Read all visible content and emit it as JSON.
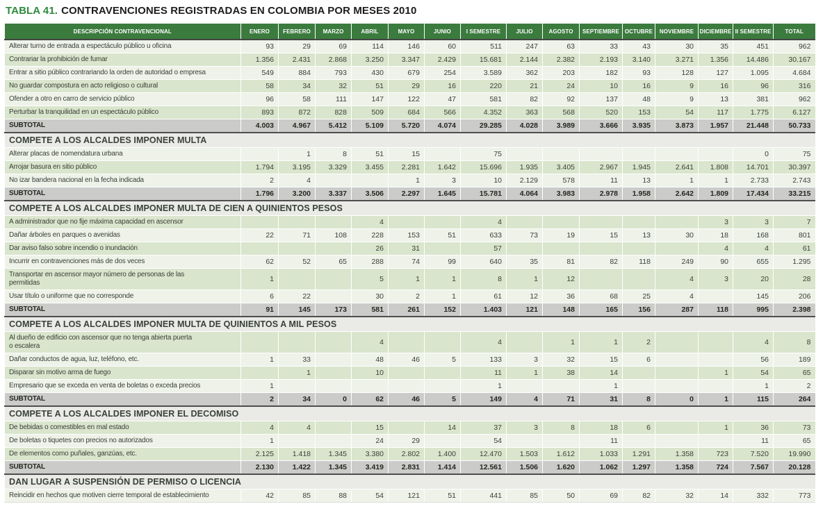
{
  "title": {
    "prefix": "TABLA 41.",
    "text": "CONTRAVENCIONES REGISTRADAS EN COLOMBIA POR MESES 2010"
  },
  "colors": {
    "header_green": "#3b7b3e",
    "title_green": "#2e8a3e",
    "row_light": "#eef2e8",
    "row_green": "#d9e5cc",
    "subtotal_gray": "#cbcbca",
    "section_bg": "#eaeae6"
  },
  "table": {
    "columns": [
      "DESCRIPCIÓN CONTRAVENCIONAL",
      "ENERO",
      "FEBRERO",
      "MARZO",
      "ABRIL",
      "MAYO",
      "JUNIO",
      "I SEMESTRE",
      "JULIO",
      "AGOSTO",
      "SEPTIEMBRE",
      "OCTUBRE",
      "NOVIEMBRE",
      "DICIEMBRE",
      "II SEMESTRE",
      "TOTAL"
    ],
    "subtotal_label": "SUBTOTAL",
    "sections": [
      {
        "header": null,
        "rows": [
          {
            "label": "Alterar turno de entrada a espectáculo público u oficina",
            "values": [
              "93",
              "29",
              "69",
              "114",
              "146",
              "60",
              "511",
              "247",
              "63",
              "33",
              "43",
              "30",
              "35",
              "451",
              "962"
            ]
          },
          {
            "label": "Contrariar la prohibición de fumar",
            "values": [
              "1.356",
              "2.431",
              "2.868",
              "3.250",
              "3.347",
              "2.429",
              "15.681",
              "2.144",
              "2.382",
              "2.193",
              "3.140",
              "3.271",
              "1.356",
              "14.486",
              "30.167"
            ]
          },
          {
            "label": "Entrar a sitio público contrariando la orden de autoridad o empresa",
            "values": [
              "549",
              "884",
              "793",
              "430",
              "679",
              "254",
              "3.589",
              "362",
              "203",
              "182",
              "93",
              "128",
              "127",
              "1.095",
              "4.684"
            ]
          },
          {
            "label": "No guardar compostura en acto religioso o cultural",
            "values": [
              "58",
              "34",
              "32",
              "51",
              "29",
              "16",
              "220",
              "21",
              "24",
              "10",
              "16",
              "9",
              "16",
              "96",
              "316"
            ]
          },
          {
            "label": "Ofender a otro en carro de servicio público",
            "values": [
              "96",
              "58",
              "111",
              "147",
              "122",
              "47",
              "581",
              "82",
              "92",
              "137",
              "48",
              "9",
              "13",
              "381",
              "962"
            ]
          },
          {
            "label": "Perturbar la tranquilidad en un espectáculo público",
            "values": [
              "893",
              "872",
              "828",
              "509",
              "684",
              "566",
              "4.352",
              "363",
              "568",
              "520",
              "153",
              "54",
              "117",
              "1.775",
              "6.127"
            ]
          }
        ],
        "subtotal": {
          "values": [
            "4.003",
            "4.967",
            "5.412",
            "5.109",
            "5.720",
            "4.074",
            "29.285",
            "4.028",
            "3.989",
            "3.666",
            "3.935",
            "3.873",
            "1.957",
            "21.448",
            "50.733"
          ]
        }
      },
      {
        "header": "COMPETE A LOS ALCALDES IMPONER MULTA",
        "rows": [
          {
            "label": "Alterar placas de nomendatura urbana",
            "values": [
              "",
              "1",
              "8",
              "51",
              "15",
              "",
              "75",
              "",
              "",
              "",
              "",
              "",
              "",
              "0",
              "75"
            ]
          },
          {
            "label": "Arrojar basura en sitio público",
            "values": [
              "1.794",
              "3.195",
              "3.329",
              "3.455",
              "2.281",
              "1.642",
              "15.696",
              "1.935",
              "3.405",
              "2.967",
              "1.945",
              "2.641",
              "1.808",
              "14.701",
              "30.397"
            ]
          },
          {
            "label": "No izar bandera nacional en la fecha indicada",
            "values": [
              "2",
              "4",
              "",
              "",
              "1",
              "3",
              "10",
              "2.129",
              "578",
              "11",
              "13",
              "1",
              "1",
              "2.733",
              "2.743"
            ]
          }
        ],
        "subtotal": {
          "values": [
            "1.796",
            "3.200",
            "3.337",
            "3.506",
            "2.297",
            "1.645",
            "15.781",
            "4.064",
            "3.983",
            "2.978",
            "1.958",
            "2.642",
            "1.809",
            "17.434",
            "33.215"
          ]
        }
      },
      {
        "header": "COMPETE A LOS ALCALDES IMPONER MULTA DE CIEN A QUINIENTOS PESOS",
        "rows": [
          {
            "label": "A administrador que no fije máxima capacidad en ascensor",
            "values": [
              "",
              "",
              "",
              "4",
              "",
              "",
              "4",
              "",
              "",
              "",
              "",
              "",
              "3",
              "3",
              "7"
            ]
          },
          {
            "label": "Dañar árboles en parques o avenidas",
            "values": [
              "22",
              "71",
              "108",
              "228",
              "153",
              "51",
              "633",
              "73",
              "19",
              "15",
              "13",
              "30",
              "18",
              "168",
              "801"
            ]
          },
          {
            "label": "Dar aviso falso sobre incendio o inundación",
            "values": [
              "",
              "",
              "",
              "26",
              "31",
              "",
              "57",
              "",
              "",
              "",
              "",
              "",
              "4",
              "4",
              "61"
            ]
          },
          {
            "label": "Incurrir en contravenciones más de dos veces",
            "values": [
              "62",
              "52",
              "65",
              "288",
              "74",
              "99",
              "640",
              "35",
              "81",
              "82",
              "118",
              "249",
              "90",
              "655",
              "1.295"
            ]
          },
          {
            "label": "Transportar en ascensor mayor número de personas de las\npermitidas",
            "values": [
              "1",
              "",
              "",
              "5",
              "1",
              "1",
              "8",
              "1",
              "12",
              "",
              "",
              "4",
              "3",
              "20",
              "28"
            ]
          },
          {
            "label": "Usar título o uniforme que no corresponde",
            "values": [
              "6",
              "22",
              "",
              "30",
              "2",
              "1",
              "61",
              "12",
              "36",
              "68",
              "25",
              "4",
              "",
              "145",
              "206"
            ]
          }
        ],
        "subtotal": {
          "values": [
            "91",
            "145",
            "173",
            "581",
            "261",
            "152",
            "1.403",
            "121",
            "148",
            "165",
            "156",
            "287",
            "118",
            "995",
            "2.398"
          ]
        }
      },
      {
        "header": "COMPETE A LOS ALCALDES IMPONER MULTA DE QUINIENTOS A MIL PESOS",
        "rows": [
          {
            "label": "Al dueño de edificio con ascensor que no tenga abierta puerta\no escalera",
            "values": [
              "",
              "",
              "",
              "4",
              "",
              "",
              "4",
              "",
              "1",
              "1",
              "2",
              "",
              "",
              "4",
              "8"
            ]
          },
          {
            "label": "Dañar conductos de agua, luz, teléfono, etc.",
            "values": [
              "1",
              "33",
              "",
              "48",
              "46",
              "5",
              "133",
              "3",
              "32",
              "15",
              "6",
              "",
              "",
              "56",
              "189"
            ]
          },
          {
            "label": "Disparar sin motivo arma de fuego",
            "values": [
              "",
              "1",
              "",
              "10",
              "",
              "",
              "11",
              "1",
              "38",
              "14",
              "",
              "",
              "1",
              "54",
              "65"
            ]
          },
          {
            "label": "Empresario que se exceda en venta de boletas o exceda precios",
            "values": [
              "1",
              "",
              "",
              "",
              "",
              "",
              "1",
              "",
              "",
              "1",
              "",
              "",
              "",
              "1",
              "2"
            ]
          }
        ],
        "subtotal": {
          "values": [
            "2",
            "34",
            "0",
            "62",
            "46",
            "5",
            "149",
            "4",
            "71",
            "31",
            "8",
            "0",
            "1",
            "115",
            "264"
          ]
        }
      },
      {
        "header": "COMPETE A LOS ALCALDES IMPONER EL DECOMISO",
        "rows": [
          {
            "label": "De bebidas o comestibles en mal estado",
            "values": [
              "4",
              "4",
              "",
              "15",
              "",
              "14",
              "37",
              "3",
              "8",
              "18",
              "6",
              "",
              "1",
              "36",
              "73"
            ]
          },
          {
            "label": "De boletas o tiquetes con precios no autorizados",
            "values": [
              "1",
              "",
              "",
              "24",
              "29",
              "",
              "54",
              "",
              "",
              "11",
              "",
              "",
              "",
              "11",
              "65"
            ]
          },
          {
            "label": "De elementos como puñales, ganzúas, etc.",
            "values": [
              "2.125",
              "1.418",
              "1.345",
              "3.380",
              "2.802",
              "1.400",
              "12.470",
              "1.503",
              "1.612",
              "1.033",
              "1.291",
              "1.358",
              "723",
              "7.520",
              "19.990"
            ]
          }
        ],
        "subtotal": {
          "values": [
            "2.130",
            "1.422",
            "1.345",
            "3.419",
            "2.831",
            "1.414",
            "12.561",
            "1.506",
            "1.620",
            "1.062",
            "1.297",
            "1.358",
            "724",
            "7.567",
            "20.128"
          ]
        }
      },
      {
        "header": "DAN LUGAR A SUSPENSIÓN DE PERMISO O LICENCIA",
        "rows": [
          {
            "label": "Reincidir en hechos que motiven cierre temporal de establecimiento",
            "values": [
              "42",
              "85",
              "88",
              "54",
              "121",
              "51",
              "441",
              "85",
              "50",
              "69",
              "82",
              "32",
              "14",
              "332",
              "773"
            ]
          }
        ],
        "subtotal": null
      }
    ]
  }
}
